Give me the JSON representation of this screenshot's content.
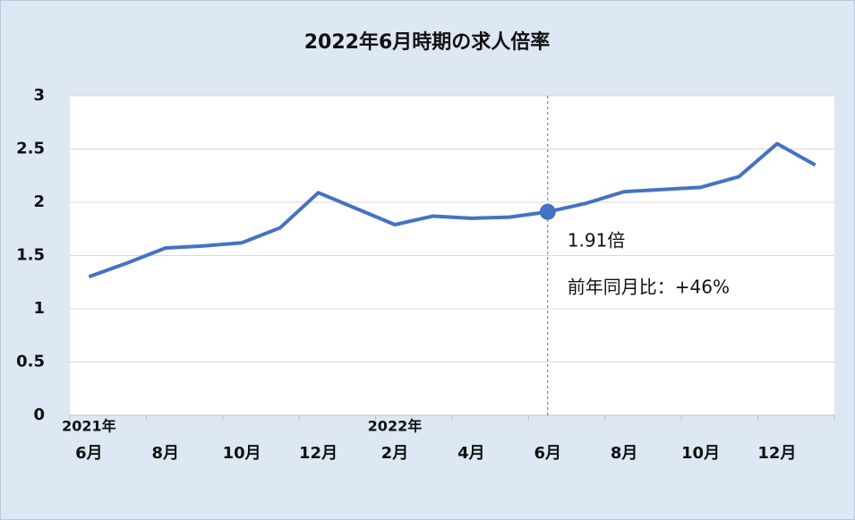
{
  "chart_data": {
    "type": "line",
    "title": "2022年6月時期の求人倍率",
    "categories": [
      "6月",
      null,
      "8月",
      null,
      "10月",
      null,
      "12月",
      null,
      "2月",
      null,
      "4月",
      null,
      "6月",
      null,
      "8月",
      null,
      "10月",
      null,
      "12月",
      null
    ],
    "year_labels": [
      "2021年",
      null,
      null,
      null,
      null,
      null,
      null,
      null,
      "2022年",
      null,
      null,
      null,
      null,
      null,
      null,
      null,
      null,
      null,
      null,
      null
    ],
    "series": [
      {
        "name": "求人倍率",
        "color": "#4472c4",
        "values": [
          1.3,
          1.43,
          1.57,
          1.59,
          1.62,
          1.76,
          2.09,
          1.94,
          1.79,
          1.87,
          1.85,
          1.86,
          1.91,
          1.99,
          2.1,
          2.12,
          2.14,
          2.24,
          2.55,
          2.35
        ]
      }
    ],
    "ylim": [
      0,
      3
    ],
    "yticks": [
      0,
      0.5,
      1,
      1.5,
      2,
      2.5,
      3
    ],
    "grid": true,
    "highlight_index": 12,
    "annotation": {
      "text": "1.91倍",
      "subtext": "前年同月比：+46%"
    }
  }
}
